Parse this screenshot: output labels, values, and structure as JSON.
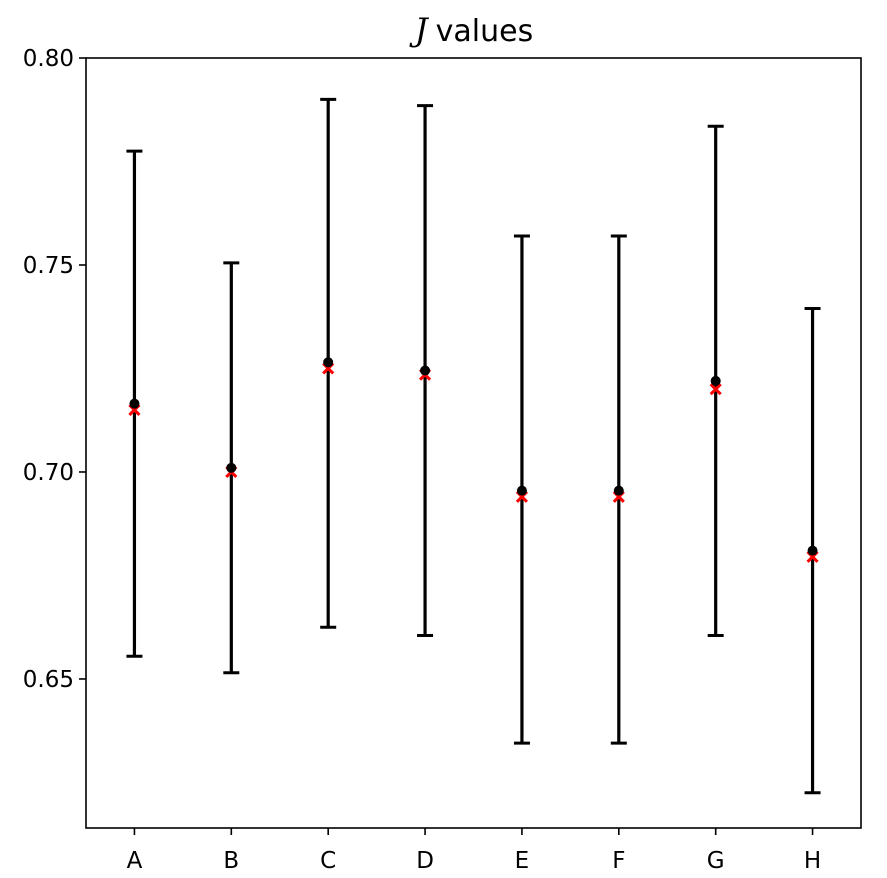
{
  "chart_data": {
    "type": "errorbar",
    "title_symbol": "J",
    "title": "values",
    "xlabel": "",
    "ylabel": "",
    "categories": [
      "A",
      "B",
      "C",
      "D",
      "E",
      "F",
      "G",
      "H"
    ],
    "ylim": [
      0.614,
      0.8
    ],
    "yticks": [
      0.65,
      0.7,
      0.75,
      0.8
    ],
    "ytick_labels": [
      "0.65",
      "0.70",
      "0.75",
      "0.80"
    ],
    "grid": false,
    "series": [
      {
        "marker": "circle",
        "color": "#000000",
        "values": [
          0.7165,
          0.701,
          0.7265,
          0.7245,
          0.6955,
          0.6955,
          0.722,
          0.681
        ],
        "err_low": [
          0.6555,
          0.6515,
          0.6625,
          0.6605,
          0.6345,
          0.6345,
          0.6605,
          0.6225
        ],
        "err_high": [
          0.7775,
          0.7505,
          0.79,
          0.7885,
          0.757,
          0.757,
          0.7835,
          0.7395
        ]
      },
      {
        "marker": "x",
        "color": "#ff0000",
        "values": [
          0.715,
          0.7,
          0.725,
          0.7235,
          0.694,
          0.694,
          0.72,
          0.6795
        ]
      }
    ]
  }
}
